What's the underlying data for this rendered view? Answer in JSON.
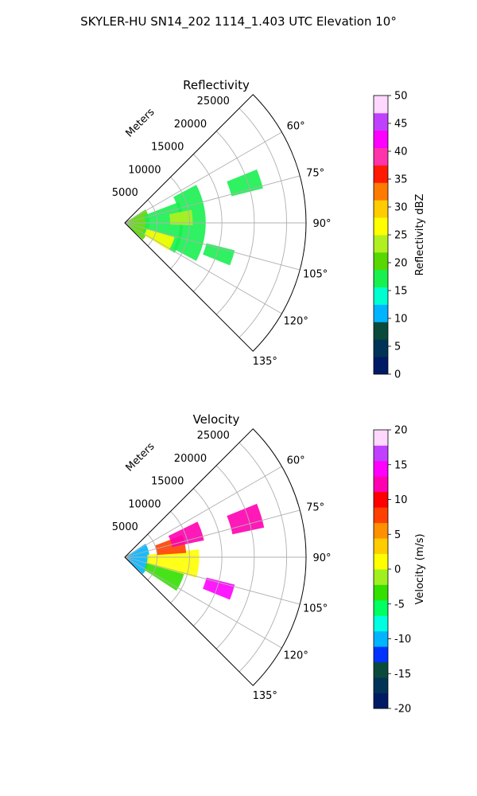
{
  "figure": {
    "title": "SKYLER-HU  SN14_202  1114_1.403 UTC Elevation 10°"
  },
  "chart_data": [
    {
      "type": "heatmap",
      "projection": "polar-sector",
      "title": "Reflectivity",
      "radial_axis_label": "Meters",
      "radial_ticks": [
        5000,
        10000,
        15000,
        20000,
        25000
      ],
      "radial_max": 28000,
      "azimuth_range": [
        45,
        135
      ],
      "azimuth_ticks": [
        "60°",
        "75°",
        "90°",
        "105°",
        "120°",
        "135°"
      ],
      "grid": true,
      "colorbar": {
        "label": "Reflectivity dBZ",
        "min": 0,
        "max": 50,
        "ticks": [
          0,
          5,
          10,
          15,
          20,
          25,
          30,
          35,
          40,
          45,
          50
        ],
        "colors": [
          "#001a66",
          "#003355",
          "#0a4a3a",
          "#00b4ff",
          "#00ffd0",
          "#18f050",
          "#58d800",
          "#b0f020",
          "#ffff00",
          "#ffcc00",
          "#ff7a00",
          "#ff1a00",
          "#ff33aa",
          "#ff00ff",
          "#c040ff",
          "#ffd8ff"
        ]
      },
      "echo_regions": [
        {
          "az": [
            57,
            133
          ],
          "r": [
            0,
            3800
          ],
          "value": 19
        },
        {
          "az": [
            69,
            121
          ],
          "r": [
            3200,
            9000
          ],
          "value": 18
        },
        {
          "az": [
            62,
            118
          ],
          "r": [
            8500,
            12500
          ],
          "value": 16
        },
        {
          "az": [
            106,
            122
          ],
          "r": [
            3500,
            8000
          ],
          "value": 26
        },
        {
          "az": [
            79,
            92
          ],
          "r": [
            7000,
            10500
          ],
          "value": 22
        },
        {
          "az": [
            68,
            76
          ],
          "r": [
            17000,
            22000
          ],
          "value": 17
        },
        {
          "az": [
            104,
            112
          ],
          "r": [
            13000,
            17500
          ],
          "value": 17
        }
      ]
    },
    {
      "type": "heatmap",
      "projection": "polar-sector",
      "title": "Velocity",
      "radial_axis_label": "Meters",
      "radial_ticks": [
        5000,
        10000,
        15000,
        20000,
        25000
      ],
      "radial_max": 28000,
      "azimuth_range": [
        45,
        135
      ],
      "azimuth_ticks": [
        "60°",
        "75°",
        "90°",
        "105°",
        "120°",
        "135°"
      ],
      "grid": true,
      "colorbar": {
        "label": "Velocity (m/s)",
        "min": -20,
        "max": 20,
        "ticks": [
          -20,
          -15,
          -10,
          -5,
          0,
          5,
          10,
          15,
          20
        ],
        "colors": [
          "#001a66",
          "#003355",
          "#0a4a3a",
          "#0033ff",
          "#00b4ff",
          "#00ffe0",
          "#00ff60",
          "#33e000",
          "#a0f020",
          "#ffff00",
          "#ffcc00",
          "#ff9000",
          "#ff4000",
          "#ff0000",
          "#ff00b0",
          "#ff00ff",
          "#c040ff",
          "#ffd8ff"
        ]
      },
      "echo_regions": [
        {
          "az": [
            57,
            133
          ],
          "r": [
            0,
            3800
          ],
          "value": -9
        },
        {
          "az": [
            104,
            123
          ],
          "r": [
            3500,
            9500
          ],
          "value": -4
        },
        {
          "az": [
            84,
            106
          ],
          "r": [
            3500,
            11500
          ],
          "value": 1
        },
        {
          "az": [
            69,
            86
          ],
          "r": [
            5000,
            9500
          ],
          "value": 8
        },
        {
          "az": [
            64,
            78
          ],
          "r": [
            7500,
            12500
          ],
          "value": 13
        },
        {
          "az": [
            68,
            78
          ],
          "r": [
            17000,
            22000
          ],
          "value": 12
        },
        {
          "az": [
            104,
            112
          ],
          "r": [
            13000,
            17500
          ],
          "value": 14
        }
      ]
    }
  ]
}
